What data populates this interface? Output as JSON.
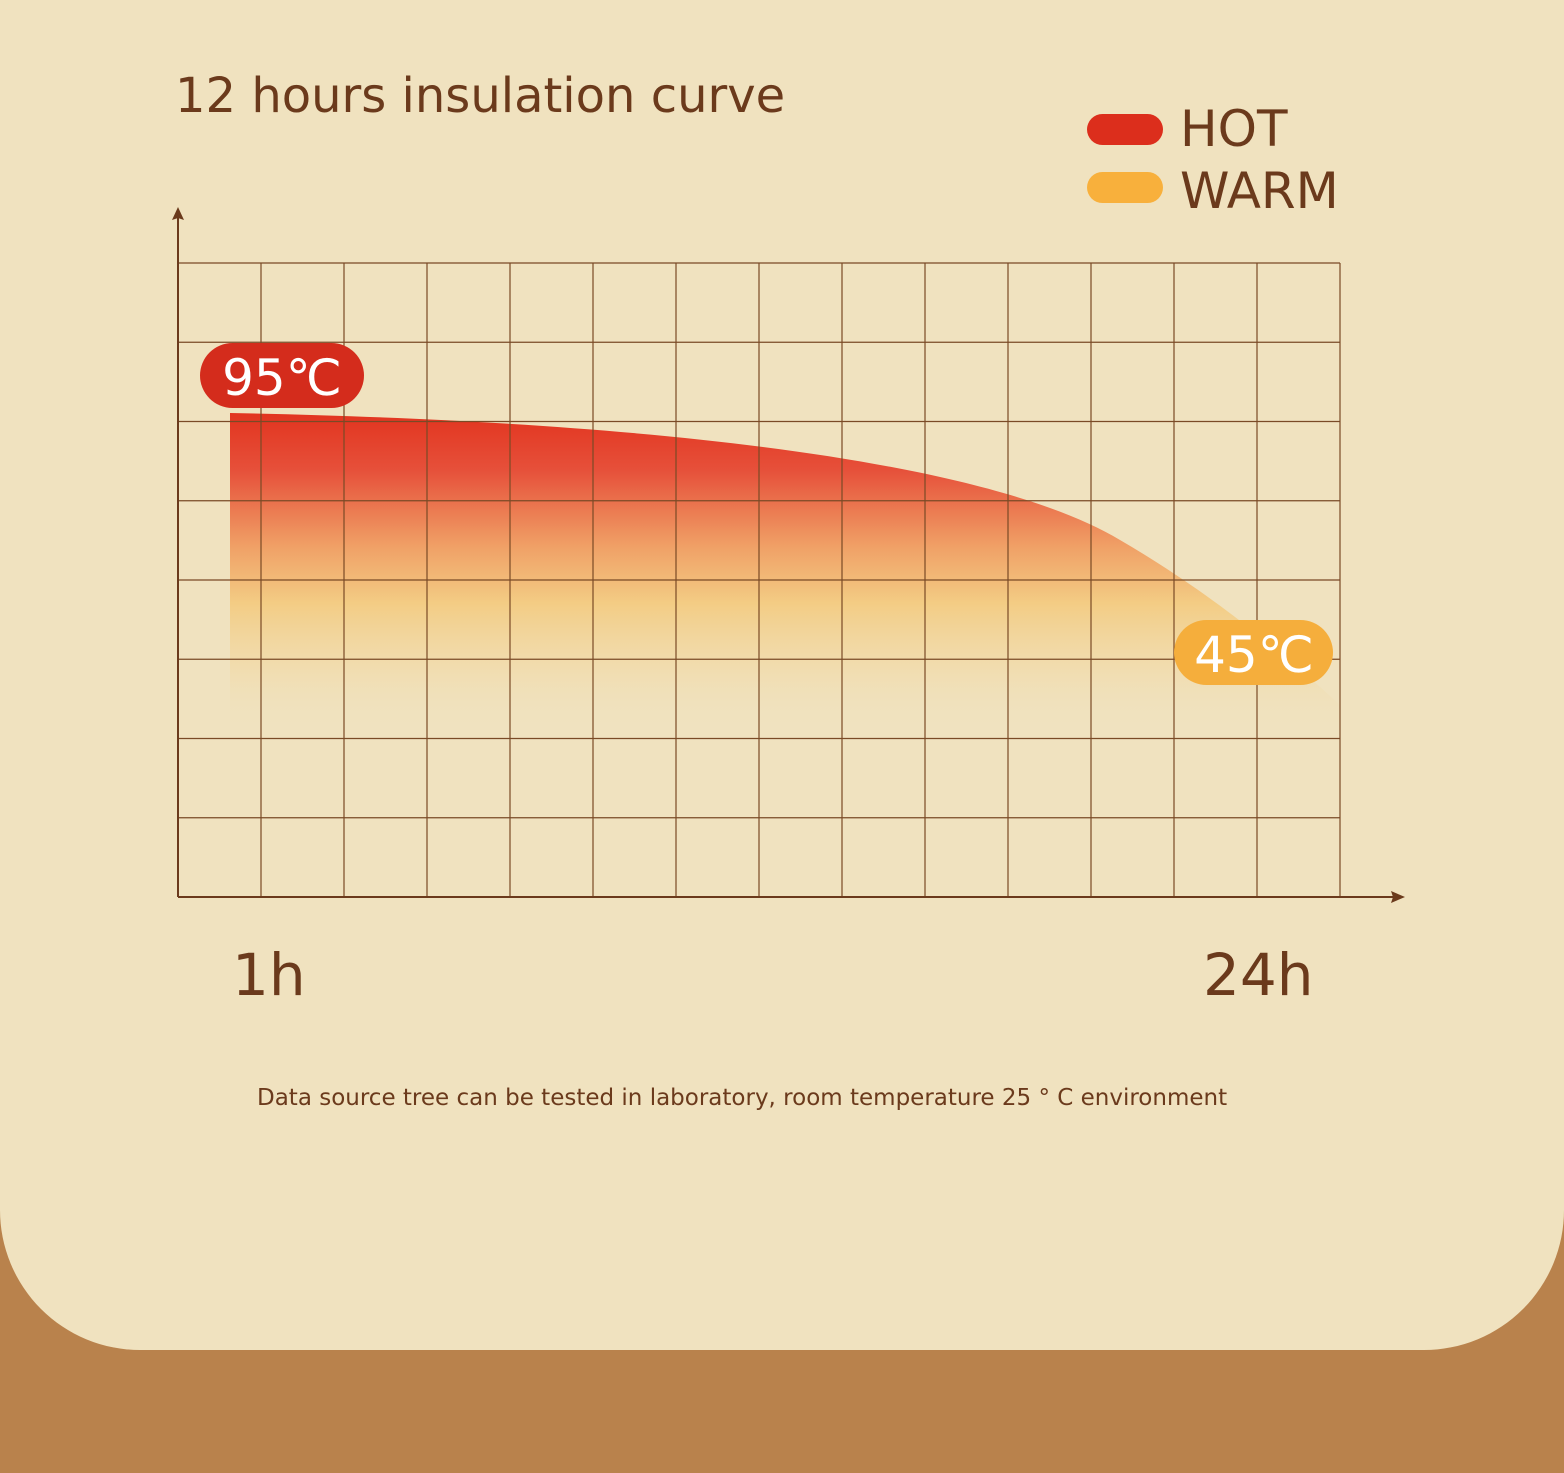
{
  "title": "12 hours insulation curve",
  "legend": [
    {
      "label": "HOT"
    },
    {
      "label": "WARM"
    }
  ],
  "labels": {
    "start": "95℃",
    "end": "45℃"
  },
  "x_axis": {
    "start": "1h",
    "end": "24h"
  },
  "footnote": "Data source tree can be tested in laboratory, room temperature 25 ° C environment"
}
